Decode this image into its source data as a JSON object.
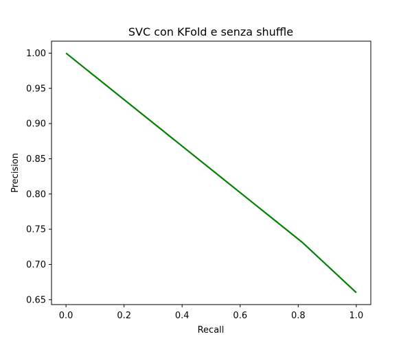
{
  "chart_data": {
    "type": "line",
    "title": "SVC  con KFold e senza shuffle",
    "xlabel": "Recall",
    "ylabel": "Precision",
    "xlim": [
      -0.05,
      1.05
    ],
    "ylim": [
      0.643,
      1.017
    ],
    "xticks": [
      0.0,
      0.2,
      0.4,
      0.6,
      0.8,
      1.0
    ],
    "xtick_labels": [
      "0.0",
      "0.2",
      "0.4",
      "0.6",
      "0.8",
      "1.0"
    ],
    "yticks": [
      0.65,
      0.7,
      0.75,
      0.8,
      0.85,
      0.9,
      0.95,
      1.0
    ],
    "ytick_labels": [
      "0.65",
      "0.70",
      "0.75",
      "0.80",
      "0.85",
      "0.90",
      "0.95",
      "1.00"
    ],
    "grid": false,
    "series": [
      {
        "color": "#008000",
        "x": [
          0.0,
          0.815,
          1.0
        ],
        "y": [
          1.0,
          0.731,
          0.66
        ]
      }
    ]
  }
}
